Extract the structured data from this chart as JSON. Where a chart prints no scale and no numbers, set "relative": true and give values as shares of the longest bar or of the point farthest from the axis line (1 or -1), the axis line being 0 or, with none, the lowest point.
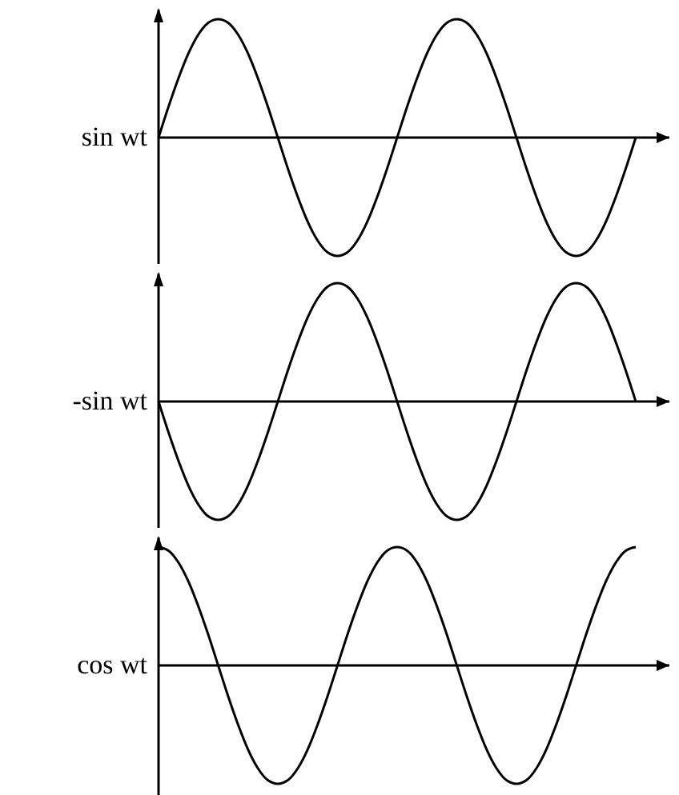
{
  "chart_data": [
    {
      "type": "line",
      "relative": true,
      "ylabel": "sin wt",
      "categories": [
        null,
        null,
        null,
        null,
        null,
        null,
        null,
        null,
        null,
        null,
        null,
        null,
        null,
        null,
        null,
        null,
        null,
        null,
        null,
        null,
        null,
        null,
        null,
        null,
        null,
        null,
        null,
        null,
        null,
        null,
        null,
        null,
        null,
        null,
        null,
        null,
        null,
        null,
        null,
        null,
        null,
        null,
        null,
        null,
        null,
        null,
        null,
        null,
        null
      ],
      "series": [
        {
          "color": "#000000",
          "values": [
            0,
            0.26,
            0.5,
            0.71,
            0.87,
            0.97,
            1,
            0.97,
            0.87,
            0.71,
            0.5,
            0.26,
            0,
            -0.26,
            -0.5,
            -0.71,
            -0.87,
            -0.97,
            -1,
            -0.97,
            -0.87,
            -0.71,
            -0.5,
            -0.26,
            0,
            0.26,
            0.5,
            0.71,
            0.87,
            0.97,
            1,
            0.97,
            0.87,
            0.71,
            0.5,
            0.26,
            0,
            -0.26,
            -0.5,
            -0.71,
            -0.87,
            -0.97,
            -1,
            -0.97,
            -0.87,
            -0.71,
            -0.5,
            -0.26,
            0
          ]
        }
      ]
    },
    {
      "type": "line",
      "relative": true,
      "ylabel": "-sin wt",
      "categories": [
        null,
        null,
        null,
        null,
        null,
        null,
        null,
        null,
        null,
        null,
        null,
        null,
        null,
        null,
        null,
        null,
        null,
        null,
        null,
        null,
        null,
        null,
        null,
        null,
        null,
        null,
        null,
        null,
        null,
        null,
        null,
        null,
        null,
        null,
        null,
        null,
        null,
        null,
        null,
        null,
        null,
        null,
        null,
        null,
        null,
        null,
        null,
        null,
        null
      ],
      "series": [
        {
          "color": "#000000",
          "values": [
            0,
            -0.26,
            -0.5,
            -0.71,
            -0.87,
            -0.97,
            -1,
            -0.97,
            -0.87,
            -0.71,
            -0.5,
            -0.26,
            0,
            0.26,
            0.5,
            0.71,
            0.87,
            0.97,
            1,
            0.97,
            0.87,
            0.71,
            0.5,
            0.26,
            0,
            -0.26,
            -0.5,
            -0.71,
            -0.87,
            -0.97,
            -1,
            -0.97,
            -0.87,
            -0.71,
            -0.5,
            -0.26,
            0,
            0.26,
            0.5,
            0.71,
            0.87,
            0.97,
            1,
            0.97,
            0.87,
            0.71,
            0.5,
            0.26,
            0
          ]
        }
      ]
    },
    {
      "type": "line",
      "relative": true,
      "ylabel": "cos wt",
      "categories": [
        null,
        null,
        null,
        null,
        null,
        null,
        null,
        null,
        null,
        null,
        null,
        null,
        null,
        null,
        null,
        null,
        null,
        null,
        null,
        null,
        null,
        null,
        null,
        null,
        null,
        null,
        null,
        null,
        null,
        null,
        null,
        null,
        null,
        null,
        null,
        null,
        null,
        null,
        null,
        null,
        null,
        null,
        null,
        null,
        null,
        null,
        null,
        null,
        null
      ],
      "series": [
        {
          "color": "#000000",
          "values": [
            1,
            0.97,
            0.87,
            0.71,
            0.5,
            0.26,
            0,
            -0.26,
            -0.5,
            -0.71,
            -0.87,
            -0.97,
            -1,
            -0.97,
            -0.87,
            -0.71,
            -0.5,
            -0.26,
            0,
            0.26,
            0.5,
            0.71,
            0.87,
            0.97,
            1,
            0.97,
            0.87,
            0.71,
            0.5,
            0.26,
            0,
            -0.26,
            -0.5,
            -0.71,
            -0.87,
            -0.97,
            -1,
            -0.97,
            -0.87,
            -0.71,
            -0.5,
            -0.26,
            0,
            0.26,
            0.5,
            0.71,
            0.87,
            0.97,
            1
          ]
        }
      ]
    }
  ]
}
